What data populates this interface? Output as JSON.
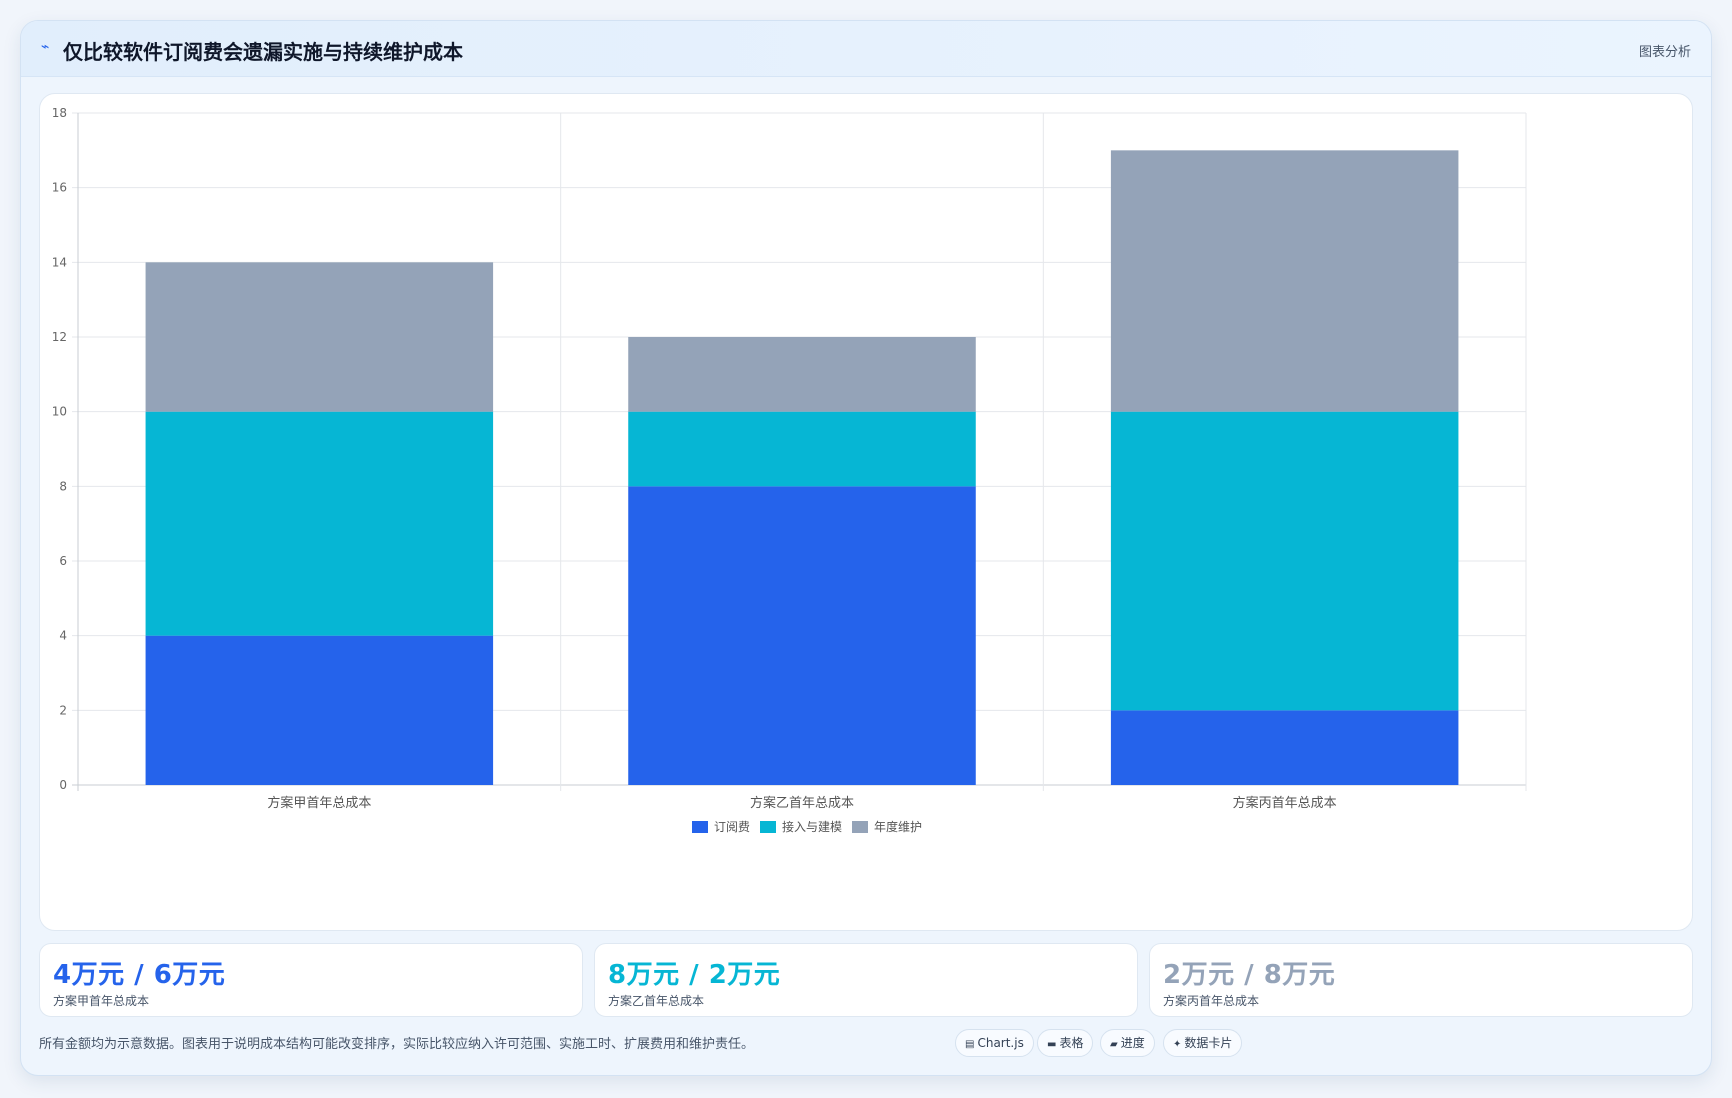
{
  "header": {
    "title": "仅比较软件订阅费会遗漏实施与持续维护成本",
    "badge": "图表分析"
  },
  "chart_data": {
    "type": "bar",
    "stacked": true,
    "categories": [
      "方案甲首年总成本",
      "方案乙首年总成本",
      "方案丙首年总成本"
    ],
    "series": [
      {
        "name": "订阅费",
        "color": "#2563eb",
        "values": [
          4,
          8,
          2
        ]
      },
      {
        "name": "接入与建模",
        "color": "#06b6d4",
        "values": [
          6,
          2,
          8
        ]
      },
      {
        "name": "年度维护",
        "color": "#94a3b8",
        "values": [
          4,
          2,
          7
        ]
      }
    ],
    "ylim": [
      0,
      18
    ],
    "yticks": [
      0,
      2,
      4,
      6,
      8,
      10,
      12,
      14,
      16,
      18
    ],
    "grid": true,
    "legend": "bottom"
  },
  "stats": [
    {
      "value": "4万元 / 6万元",
      "label": "方案甲首年总成本",
      "color": "#2563eb"
    },
    {
      "value": "8万元 / 2万元",
      "label": "方案乙首年总成本",
      "color": "#06b6d4"
    },
    {
      "value": "2万元 / 8万元",
      "label": "方案丙首年总成本",
      "color": "#94a3b8"
    }
  ],
  "footer": {
    "note": "所有金额均为示意数据。图表用于说明成本结构可能改变排序，实际比较应纳入许可范围、实施工时、扩展费用和维护责任。",
    "chips": [
      {
        "icon": "chart-icon",
        "label": "Chart.js"
      },
      {
        "icon": "table-icon",
        "label": "表格"
      },
      {
        "icon": "progress-icon",
        "label": "进度"
      },
      {
        "icon": "card-icon",
        "label": "数据卡片"
      }
    ]
  }
}
